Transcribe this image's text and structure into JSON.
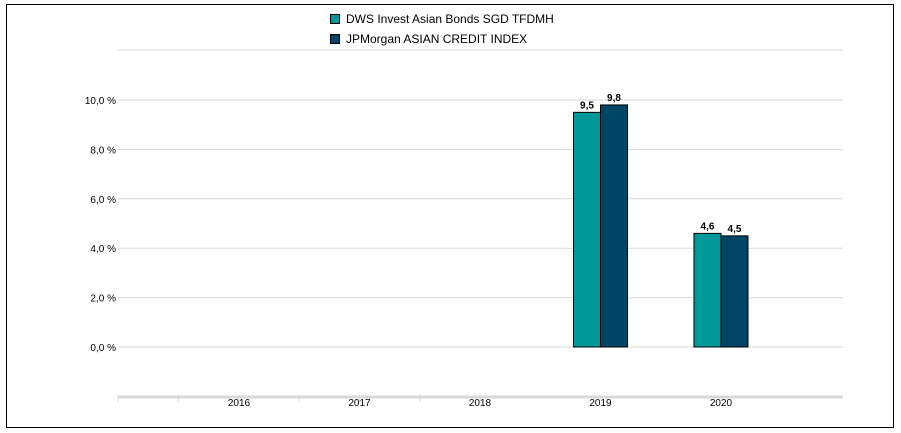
{
  "chart_data": {
    "type": "bar",
    "title": "",
    "xlabel": "",
    "ylabel": "",
    "categories": [
      "2016",
      "2017",
      "2018",
      "2019",
      "2020"
    ],
    "series": [
      {
        "name": "DWS Invest Asian Bonds  SGD TFDMH",
        "color": "#009999",
        "values": [
          null,
          null,
          null,
          9.5,
          4.6
        ],
        "labels": [
          "",
          "",
          "",
          "9,5",
          "4,6"
        ]
      },
      {
        "name": "JPMorgan ASIAN CREDIT INDEX",
        "color": "#004566",
        "values": [
          null,
          null,
          null,
          9.8,
          4.5
        ],
        "labels": [
          "",
          "",
          "",
          "9,8",
          "4,5"
        ]
      }
    ],
    "ylim": [
      0,
      10
    ],
    "yticks": [
      0,
      2,
      4,
      6,
      8,
      10
    ],
    "ytick_labels": [
      "0,0 %",
      "2,0 %",
      "4,0 %",
      "6,0 %",
      "8,0 %",
      "10,0 %"
    ],
    "grid": true,
    "legend_position": "top-center"
  }
}
